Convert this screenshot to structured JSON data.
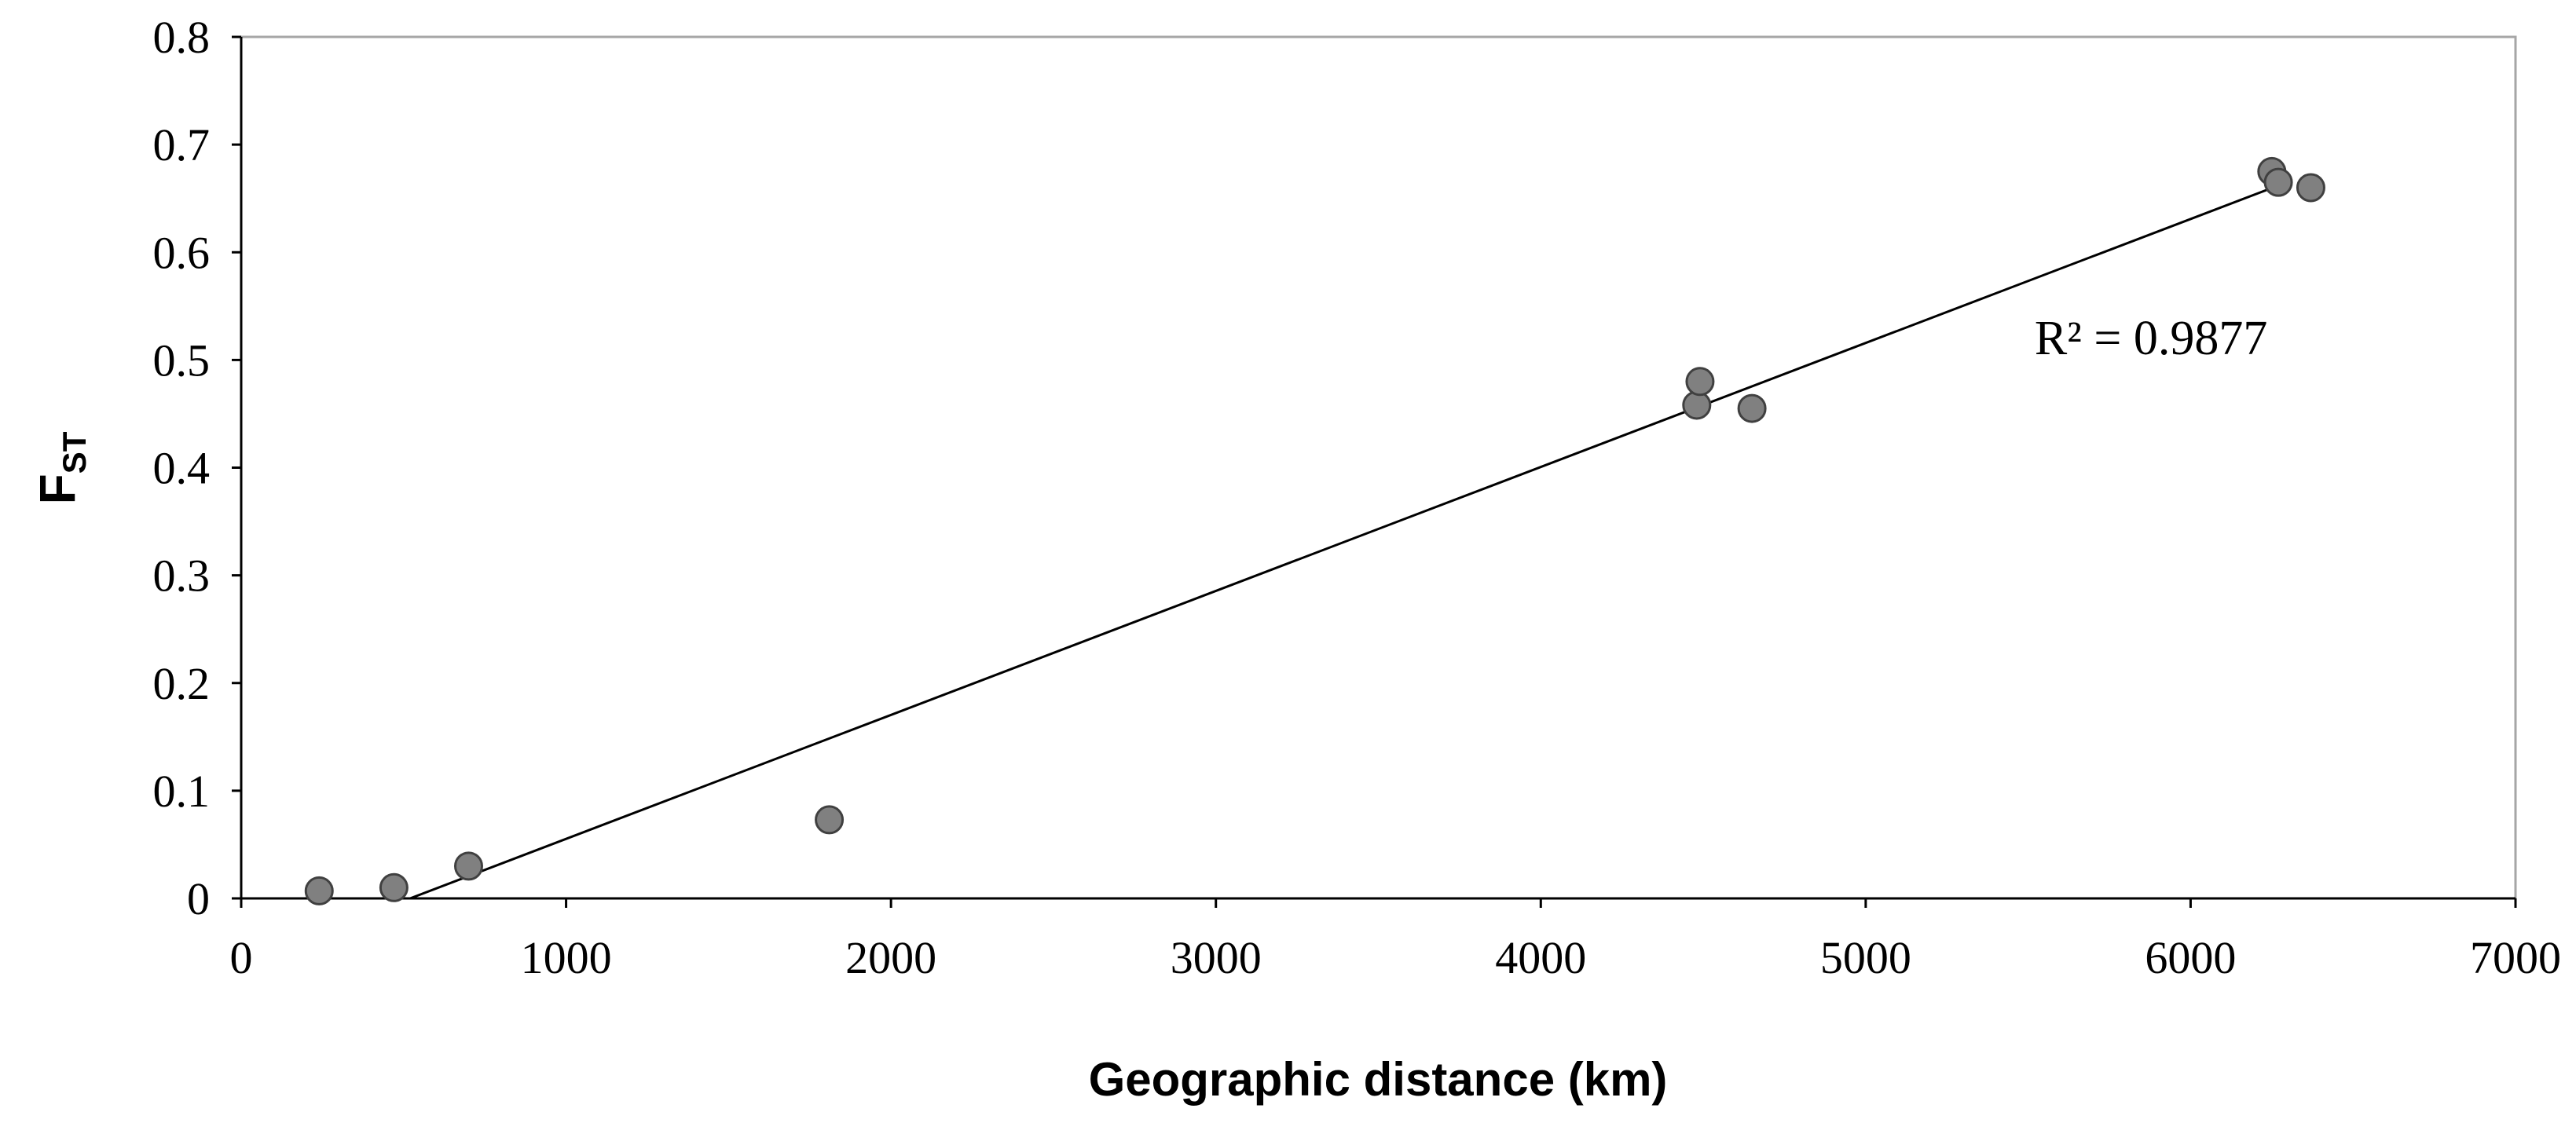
{
  "chart_data": {
    "type": "scatter",
    "xlabel": "Geographic distance (km)",
    "ylabel": {
      "main": "F",
      "sub": "ST"
    },
    "xlim": [
      0,
      7000
    ],
    "ylim": [
      0,
      0.8
    ],
    "xticks": [
      0,
      1000,
      2000,
      3000,
      4000,
      5000,
      6000,
      7000
    ],
    "yticks": [
      0,
      0.1,
      0.2,
      0.3,
      0.4,
      0.5,
      0.6,
      0.7,
      0.8
    ],
    "grid": false,
    "points": [
      {
        "x": 240,
        "y": 0.007
      },
      {
        "x": 470,
        "y": 0.01
      },
      {
        "x": 700,
        "y": 0.03
      },
      {
        "x": 1810,
        "y": 0.073
      },
      {
        "x": 4480,
        "y": 0.458
      },
      {
        "x": 4490,
        "y": 0.48
      },
      {
        "x": 4650,
        "y": 0.455
      },
      {
        "x": 6250,
        "y": 0.675
      },
      {
        "x": 6270,
        "y": 0.665
      },
      {
        "x": 6370,
        "y": 0.66
      }
    ],
    "trendline": {
      "x": [
        520,
        6270
      ],
      "y": [
        0,
        0.662
      ]
    },
    "annotation": {
      "text": "R² = 0.9877",
      "x": 5520,
      "y": 0.52
    },
    "colors": {
      "marker_fill": "#808080",
      "marker_stroke": "#404040",
      "line": "#000000",
      "axis": "#000000"
    }
  }
}
